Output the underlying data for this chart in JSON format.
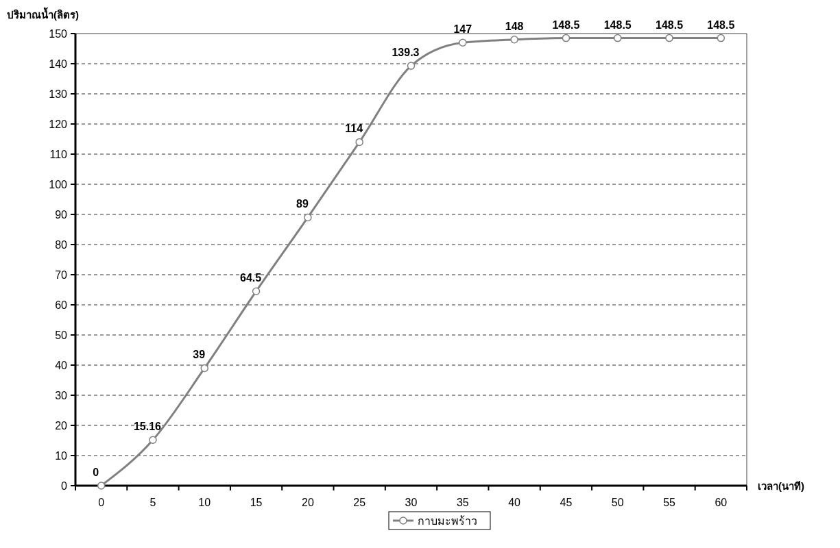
{
  "chart_data": {
    "type": "line",
    "xlabel": "เวลา(นาที)",
    "ylabel": "ปริมาณน้ำ(ลิตร)",
    "categories": [
      "0",
      "5",
      "10",
      "15",
      "20",
      "25",
      "30",
      "35",
      "40",
      "45",
      "50",
      "55",
      "60"
    ],
    "series": [
      {
        "name": "กาบมะพร้าว",
        "color": "#808080",
        "values": [
          0,
          15.16,
          39,
          64.5,
          89,
          114,
          139.3,
          147,
          148,
          148.5,
          148.5,
          148.5,
          148.5
        ]
      }
    ],
    "ylim": [
      0,
      150
    ],
    "yticks": [
      0,
      10,
      20,
      30,
      40,
      50,
      60,
      70,
      80,
      90,
      100,
      110,
      120,
      130,
      140,
      150
    ],
    "grid": "y",
    "legend": "bottom",
    "marker": "circle",
    "line_style": "solid",
    "data_labels": true
  }
}
